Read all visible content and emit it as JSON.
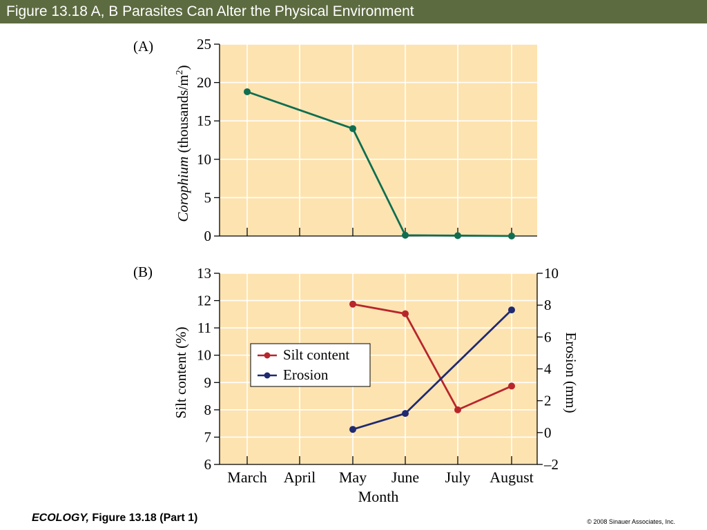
{
  "slide": {
    "title": "Figure 13.18 A, B  Parasites Can Alter the Physical Environment",
    "footer_source_book": "ECOLOGY,",
    "footer_source_figure": " Figure 13.18 (Part 1)",
    "copyright": "© 2008 Sinauer Associates, Inc."
  },
  "colors": {
    "title_bar": "#5d6b40",
    "plot_background": "#fde3b0",
    "gridline": "#ffffff",
    "corophium": "#0f6e50",
    "silt": "#b8262c",
    "erosion": "#1f2a70"
  },
  "chart_data": [
    {
      "type": "line",
      "panel_label": "(A)",
      "categories": [
        "March",
        "April",
        "May",
        "June",
        "July",
        "August"
      ],
      "series": [
        {
          "values": [
            18.8,
            null,
            14.0,
            0.1,
            0.05,
            0.0
          ]
        }
      ],
      "ylabel_italic": "Corophium",
      "ylabel_rest": " (thousands/m",
      "ylabel_sup": "2",
      "ylabel_close": ")",
      "ylim": [
        0,
        25
      ],
      "yticks": [
        "0",
        "5",
        "10",
        "15",
        "20",
        "25"
      ],
      "grid": true
    },
    {
      "type": "line",
      "panel_label": "(B)",
      "categories": [
        "March",
        "April",
        "May",
        "June",
        "July",
        "August"
      ],
      "xlabel": "Month",
      "ylabel_left": "Silt content (%)",
      "ylabel_right": "Erosion (mm)",
      "ylim_left": [
        6,
        13
      ],
      "ylim_right": [
        -2,
        10
      ],
      "yticks_left": [
        "6",
        "7",
        "8",
        "9",
        "10",
        "11",
        "12",
        "13"
      ],
      "yticks_right": [
        "–2",
        "0",
        "2",
        "4",
        "6",
        "8",
        "10"
      ],
      "series": [
        {
          "name": "Silt content",
          "axis": "left",
          "values": [
            null,
            null,
            11.87,
            11.52,
            8.0,
            8.87
          ]
        },
        {
          "name": "Erosion",
          "axis": "right",
          "values": [
            null,
            null,
            0.2,
            1.2,
            null,
            7.7
          ]
        }
      ],
      "legend": "center-left",
      "grid": true
    }
  ]
}
